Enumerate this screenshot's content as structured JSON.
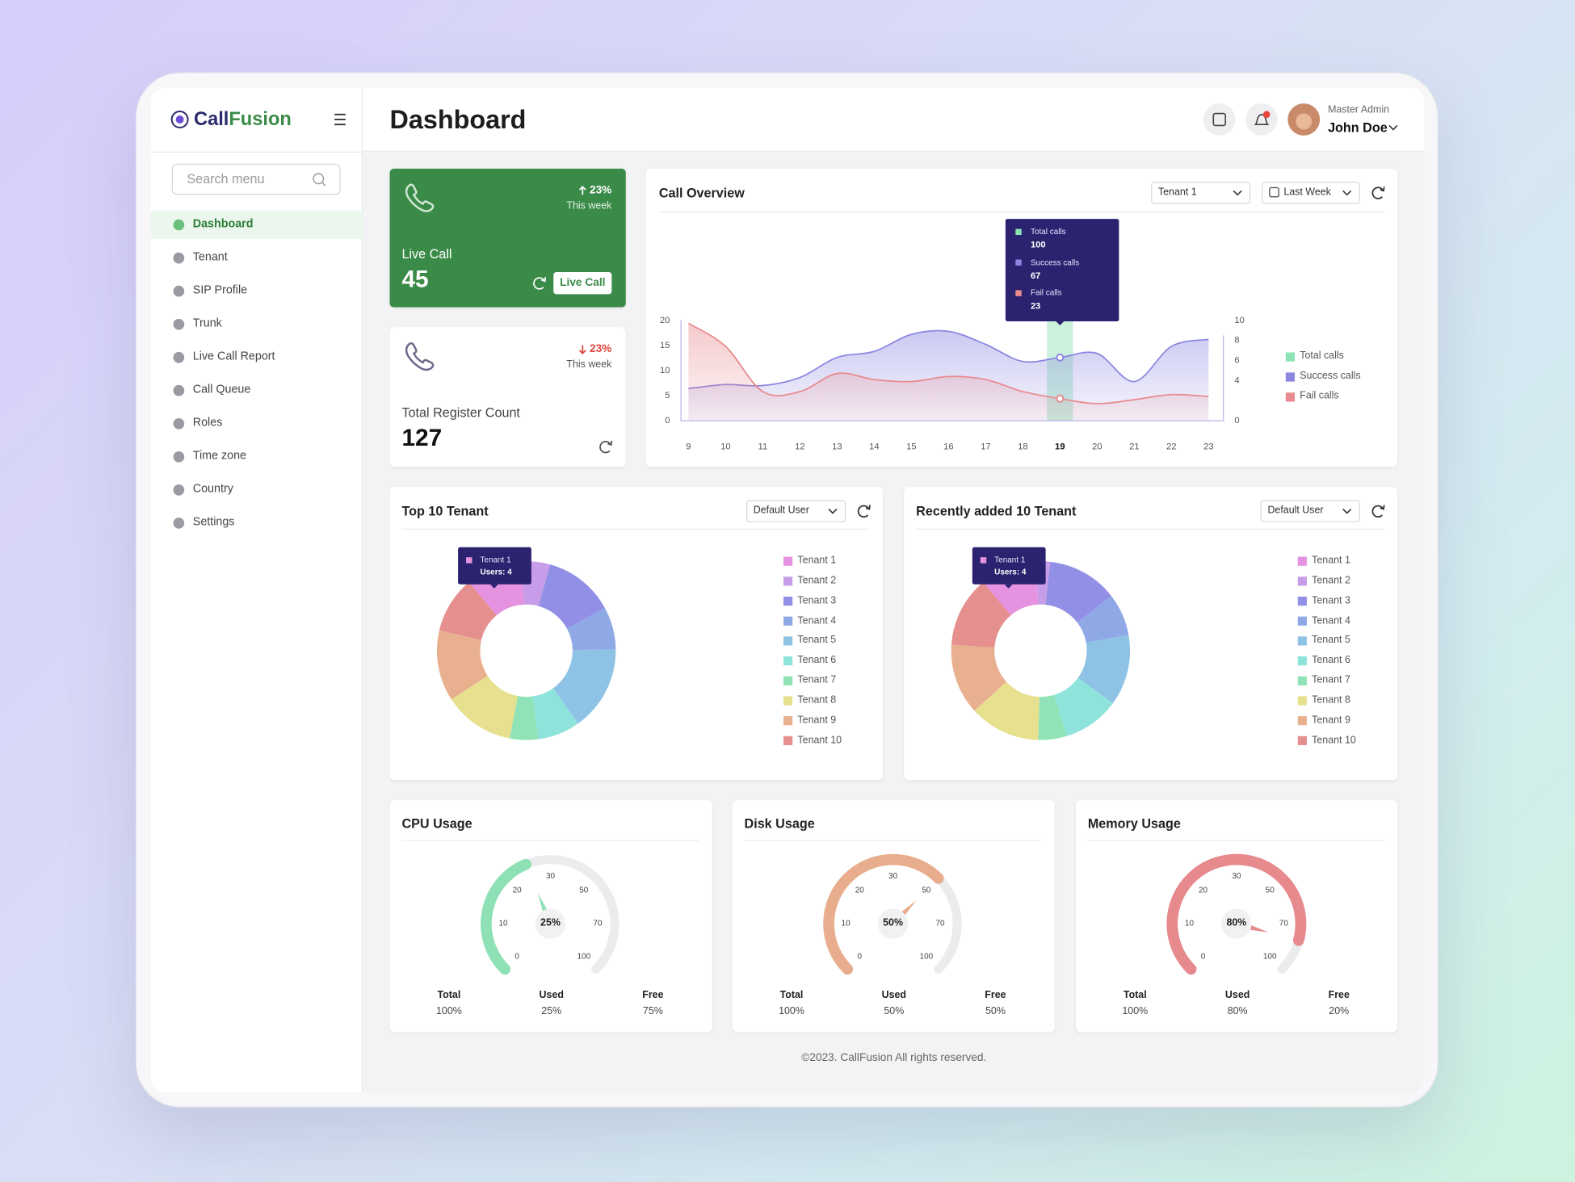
{
  "brand": {
    "part1": "Call",
    "part2": "Fusion"
  },
  "search_placeholder": "Search menu",
  "menu": {
    "items": [
      "Dashboard",
      "Tenant",
      "SIP Profile",
      "Trunk",
      "Live Call Report",
      "Call Queue",
      "Roles",
      "Time zone",
      "Country",
      "Settings"
    ],
    "active": 0
  },
  "header": {
    "title": "Dashboard",
    "role": "Master Admin",
    "user": "John Doe"
  },
  "cards": [
    {
      "change": "23%",
      "direction": "up",
      "period": "This week",
      "label": "Live Call",
      "value": 45,
      "button": "Live Call"
    },
    {
      "change": "23%",
      "direction": "down",
      "period": "This week",
      "label": "Total Register Count",
      "value": 127
    }
  ],
  "chart_data": [
    {
      "type": "area",
      "title": "Call Overview",
      "filters": [
        "Tenant 1",
        "Last Week"
      ],
      "x": [
        9,
        10,
        11,
        12,
        13,
        14,
        15,
        16,
        17,
        18,
        19,
        20,
        21,
        22,
        23
      ],
      "xlim": [
        8.8,
        23.4
      ],
      "ylim": [
        0,
        20
      ],
      "yticks": [
        0,
        5,
        10,
        15,
        20
      ],
      "y2lim": [
        0,
        10
      ],
      "y2ticks": [
        0,
        4,
        6,
        8,
        10
      ],
      "series": [
        {
          "name": "Total calls",
          "color": "#8ee3b5"
        },
        {
          "name": "Success calls",
          "color": "#8b86e0",
          "values": [
            6.4,
            7.2,
            7,
            8.6,
            12.6,
            13.8,
            17.2,
            17.8,
            15.2,
            11.8,
            12.6,
            13.4,
            7.8,
            14.8,
            16.2
          ]
        },
        {
          "name": "Fail calls",
          "color": "#e88a8e",
          "values": [
            19.4,
            14.8,
            5.8,
            5.8,
            9.4,
            8.2,
            7.8,
            8.8,
            8.2,
            5.8,
            4.4,
            3.4,
            4.2,
            5.2,
            4.8
          ]
        }
      ],
      "highlight_x": 19,
      "tooltip": [
        100,
        67,
        23
      ],
      "legend": "right"
    },
    {
      "type": "pie",
      "donut": true,
      "title": "Top 10 Tenant",
      "filter": "Default User",
      "categories": [
        "Tenant 1",
        "Tenant 2",
        "Tenant 3",
        "Tenant 4",
        "Tenant 5",
        "Tenant 6",
        "Tenant 7",
        "Tenant 8",
        "Tenant 9",
        "Tenant 10"
      ],
      "values": [
        4,
        2,
        5,
        3,
        6,
        3,
        2,
        5,
        5,
        4
      ],
      "colors": [
        "#e592e0",
        "#c79ce8",
        "#9290e6",
        "#8fa8e6",
        "#8ec3e6",
        "#8ee3da",
        "#8fe3b6",
        "#e6e08f",
        "#e8b08f",
        "#e68f8f"
      ],
      "tooltip": {
        "index": 0,
        "text": "Users: 4"
      }
    },
    {
      "type": "pie",
      "donut": true,
      "title": "Recently added 10 Tenant",
      "filter": "Default User",
      "categories": [
        "Tenant 1",
        "Tenant 2",
        "Tenant 3",
        "Tenant 4",
        "Tenant 5",
        "Tenant 6",
        "Tenant 7",
        "Tenant 8",
        "Tenant 9",
        "Tenant 10"
      ],
      "values": [
        4,
        1,
        5,
        3,
        5,
        4,
        2,
        5,
        5,
        5
      ],
      "colors": [
        "#e592e0",
        "#c79ce8",
        "#9290e6",
        "#8fa8e6",
        "#8ec3e6",
        "#8ee3da",
        "#8fe3b6",
        "#e6e08f",
        "#e8b08f",
        "#e68f8f"
      ],
      "tooltip": {
        "index": 0,
        "text": "Users: 4"
      }
    },
    {
      "type": "gauge",
      "title": "CPU Usage",
      "value": 25,
      "value_label": "25%",
      "ticks": [
        0,
        10,
        20,
        30,
        50,
        70,
        100
      ],
      "color": "#8ee0b5",
      "stats": [
        {
          "label": "Total",
          "value": "100%"
        },
        {
          "label": "Used",
          "value": "25%"
        },
        {
          "label": "Free",
          "value": "75%"
        }
      ]
    },
    {
      "type": "gauge",
      "title": "Disk Usage",
      "value": 50,
      "value_label": "50%",
      "ticks": [
        0,
        10,
        20,
        30,
        50,
        70,
        100
      ],
      "color": "#e8ad8c",
      "stats": [
        {
          "label": "Total",
          "value": "100%"
        },
        {
          "label": "Used",
          "value": "50%"
        },
        {
          "label": "Free",
          "value": "50%"
        }
      ]
    },
    {
      "type": "gauge",
      "title": "Memory Usage",
      "value": 80,
      "value_label": "80%",
      "ticks": [
        0,
        10,
        20,
        30,
        50,
        70,
        100
      ],
      "color": "#e68a8e",
      "stats": [
        {
          "label": "Total",
          "value": "100%"
        },
        {
          "label": "Used",
          "value": "80%"
        },
        {
          "label": "Free",
          "value": "20%"
        }
      ]
    }
  ],
  "footer": "©2023. CallFusion All rights reserved."
}
